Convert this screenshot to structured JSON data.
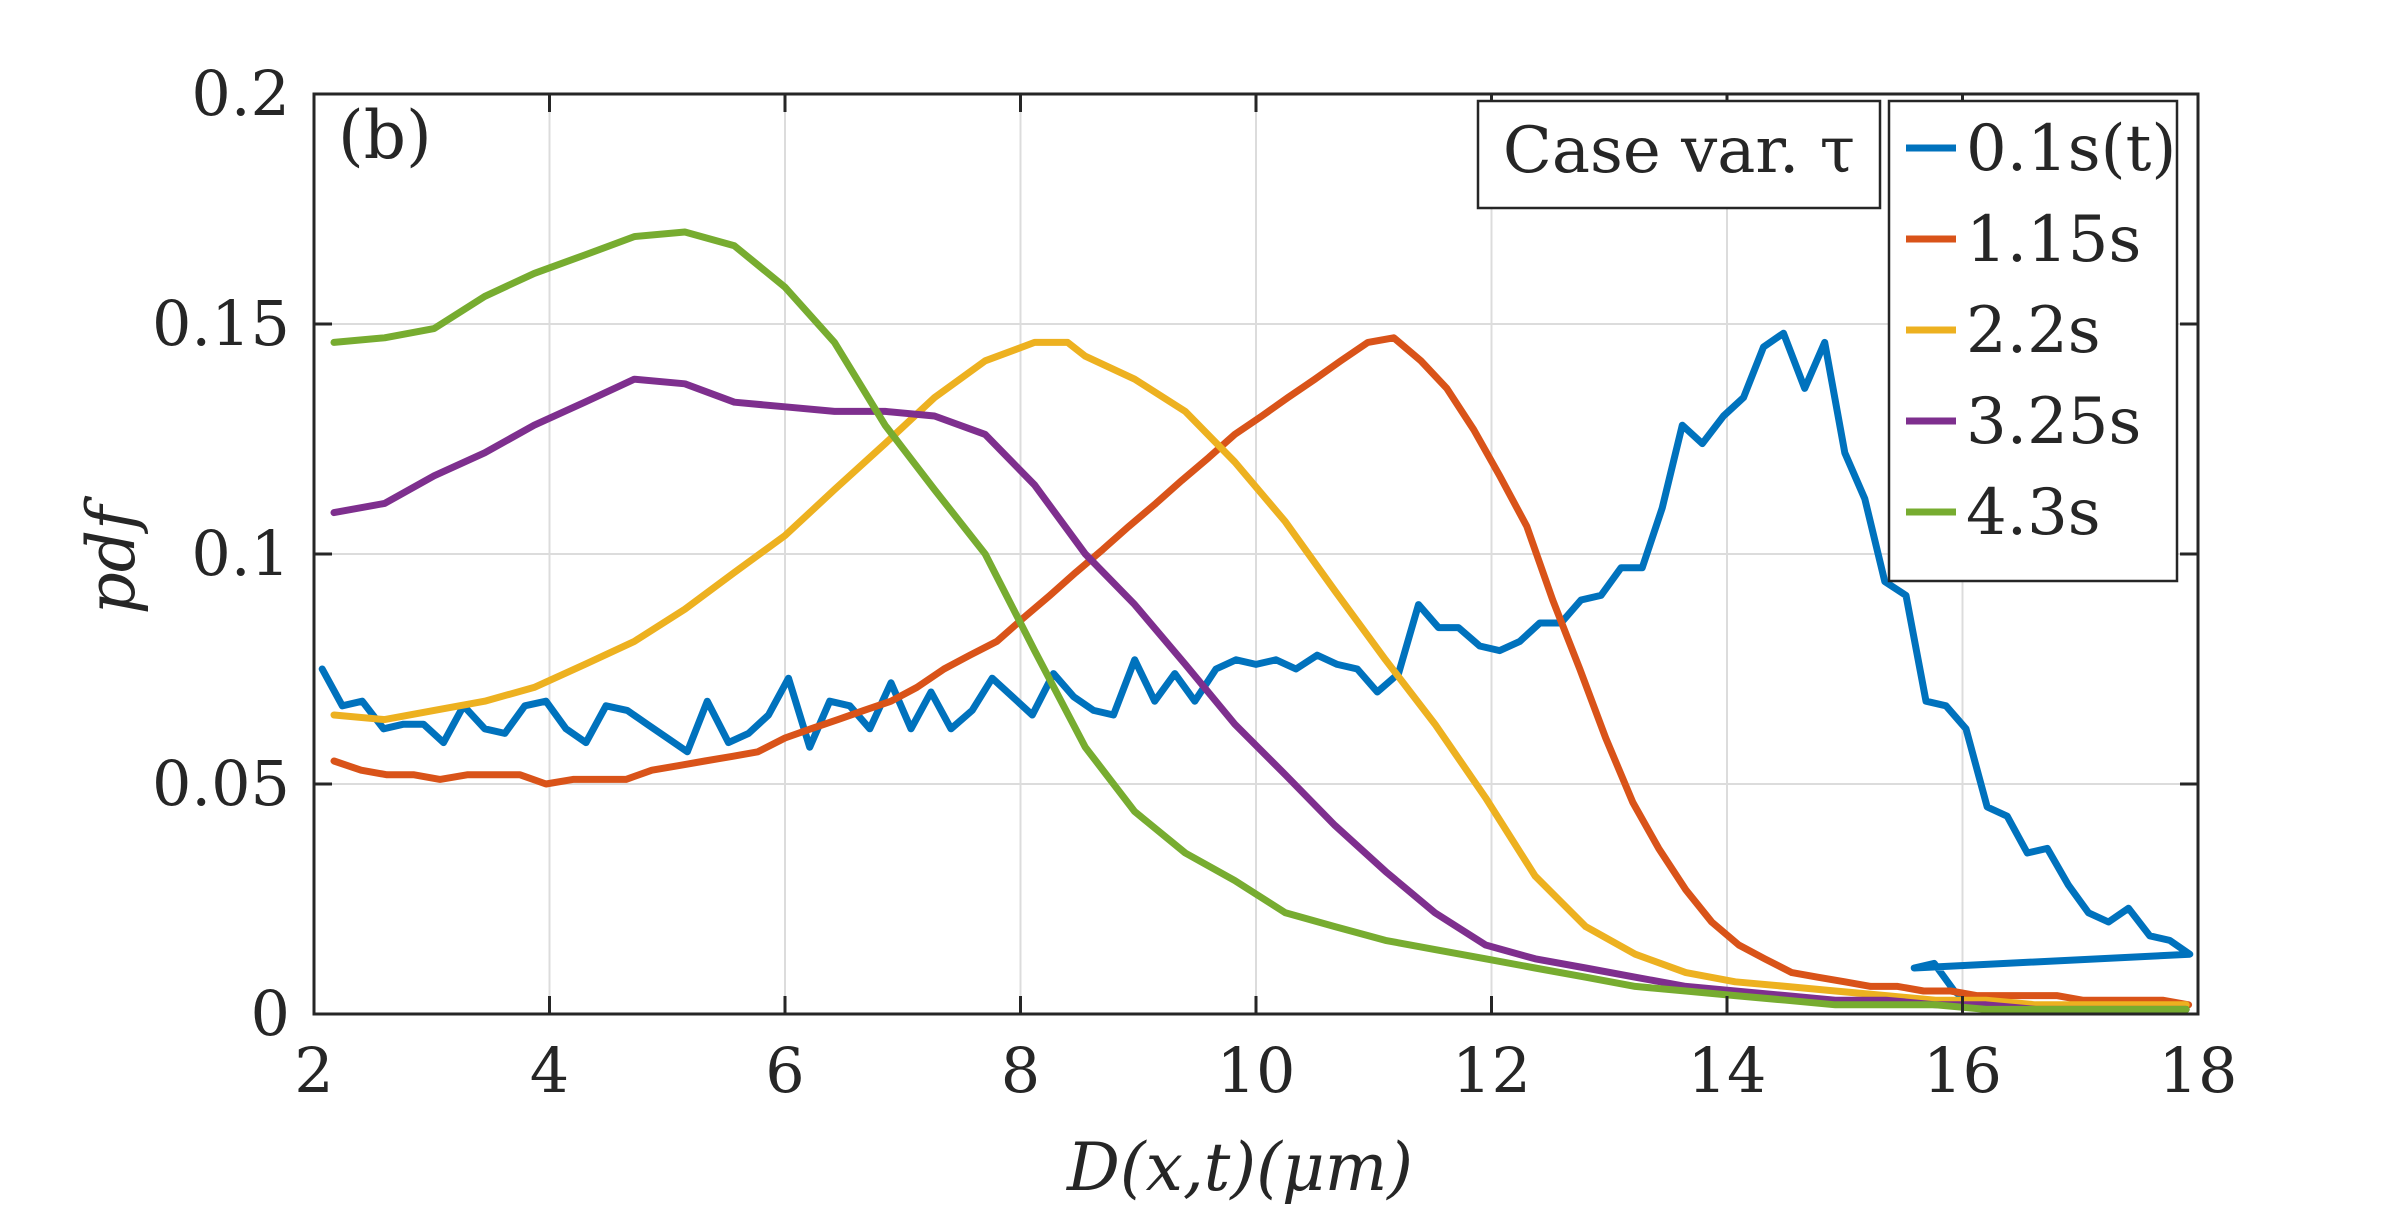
{
  "chart_data": {
    "type": "line",
    "panel_label": "(b)",
    "xlabel": "D(x,t)(μm)",
    "ylabel": "pdf",
    "xlim": [
      2,
      18
    ],
    "ylim": [
      0,
      0.2
    ],
    "xticks": [
      2,
      4,
      6,
      8,
      10,
      12,
      14,
      16,
      18
    ],
    "xtick_labels": [
      "2",
      "4",
      "6",
      "8",
      "10",
      "12",
      "14",
      "16",
      "18"
    ],
    "yticks": [
      0,
      0.05,
      0.1,
      0.15,
      0.2
    ],
    "ytick_labels": [
      "0",
      "0.05",
      "0.1",
      "0.15",
      "0.2"
    ],
    "grid": true,
    "legend_title": "Case var. τ",
    "legend_position": "top-right",
    "series": [
      {
        "name": "0.1s(t)",
        "color": "#0072BD",
        "x": [
          2.07,
          2.24,
          2.41,
          2.59,
          2.76,
          2.93,
          3.1,
          3.27,
          3.45,
          3.62,
          3.79,
          3.97,
          4.14,
          4.31,
          4.48,
          4.66,
          4.83,
          5.0,
          5.17,
          5.34,
          5.52,
          5.69,
          5.86,
          6.03,
          6.21,
          6.38,
          6.55,
          6.72,
          6.9,
          7.07,
          7.24,
          7.41,
          7.59,
          7.76,
          7.93,
          8.1,
          8.28,
          8.45,
          8.62,
          8.79,
          8.97,
          9.14,
          9.31,
          9.48,
          9.66,
          9.83,
          10.0,
          10.17,
          10.34,
          10.52,
          10.69,
          10.86,
          11.03,
          11.21,
          11.38,
          11.55,
          11.72,
          11.9,
          12.07,
          12.24,
          12.41,
          12.59,
          12.76,
          12.93,
          13.1,
          13.28,
          13.45,
          13.62,
          13.79,
          13.97,
          14.14,
          14.31,
          14.48,
          14.66,
          14.83,
          15.0,
          15.17,
          15.34,
          15.52,
          15.69,
          15.86,
          16.03,
          16.21,
          16.38,
          16.55,
          16.72,
          16.9,
          17.07,
          17.24,
          17.41,
          17.59,
          17.76,
          17.93
        ],
        "y": [
          0.075,
          0.067,
          0.068,
          0.062,
          0.063,
          0.063,
          0.059,
          0.067,
          0.062,
          0.061,
          0.067,
          0.068,
          0.062,
          0.059,
          0.067,
          0.066,
          0.063,
          0.06,
          0.057,
          0.068,
          0.059,
          0.061,
          0.065,
          0.073,
          0.058,
          0.068,
          0.067,
          0.062,
          0.072,
          0.062,
          0.07,
          0.062,
          0.066,
          0.073,
          0.069,
          0.065,
          0.074,
          0.069,
          0.066,
          0.065,
          0.077,
          0.068,
          0.074,
          0.068,
          0.075,
          0.077,
          0.076,
          0.077,
          0.075,
          0.078,
          0.076,
          0.075,
          0.07,
          0.074,
          0.089,
          0.084,
          0.084,
          0.08,
          0.079,
          0.081,
          0.085,
          0.085,
          0.09,
          0.091,
          0.097,
          0.097,
          0.11,
          0.128,
          0.124,
          0.13,
          0.134,
          0.145,
          0.148,
          0.136,
          0.146,
          0.122,
          0.112,
          0.094,
          0.091,
          0.068,
          0.067,
          0.062,
          0.045,
          0.043,
          0.035,
          0.036,
          0.028,
          0.022,
          0.02,
          0.023,
          0.017,
          0.016,
          0.013
        ],
        "tail_x": [
          15.59,
          15.76,
          15.93,
          16.03
        ],
        "tail_y": [
          0.01,
          0.011,
          0.005,
          0.003
        ]
      },
      {
        "name": "1.15s",
        "color": "#D95319",
        "x": [
          2.17,
          2.4,
          2.62,
          2.85,
          3.07,
          3.3,
          3.52,
          3.75,
          3.97,
          4.2,
          4.42,
          4.65,
          4.87,
          5.1,
          5.32,
          5.55,
          5.77,
          6.0,
          6.22,
          6.45,
          6.67,
          6.9,
          7.12,
          7.35,
          7.57,
          7.8,
          8.02,
          8.25,
          8.47,
          8.7,
          8.92,
          9.15,
          9.37,
          9.6,
          9.82,
          10.05,
          10.27,
          10.5,
          10.72,
          10.95,
          11.17,
          11.4,
          11.62,
          11.85,
          12.07,
          12.3,
          12.52,
          12.75,
          12.97,
          13.2,
          13.42,
          13.65,
          13.87,
          14.1,
          14.32,
          14.55,
          14.77,
          15.0,
          15.22,
          15.45,
          15.67,
          15.9,
          16.12,
          16.35,
          16.57,
          16.8,
          17.02,
          17.25,
          17.47,
          17.7,
          17.92
        ],
        "y": [
          0.055,
          0.053,
          0.052,
          0.052,
          0.051,
          0.052,
          0.052,
          0.052,
          0.05,
          0.051,
          0.051,
          0.051,
          0.053,
          0.054,
          0.055,
          0.056,
          0.057,
          0.06,
          0.062,
          0.064,
          0.066,
          0.068,
          0.071,
          0.075,
          0.078,
          0.081,
          0.086,
          0.091,
          0.096,
          0.101,
          0.106,
          0.111,
          0.116,
          0.121,
          0.126,
          0.13,
          0.134,
          0.138,
          0.142,
          0.146,
          0.147,
          0.142,
          0.136,
          0.127,
          0.117,
          0.106,
          0.09,
          0.075,
          0.06,
          0.046,
          0.036,
          0.027,
          0.02,
          0.015,
          0.012,
          0.009,
          0.008,
          0.007,
          0.006,
          0.006,
          0.005,
          0.005,
          0.004,
          0.004,
          0.004,
          0.004,
          0.003,
          0.003,
          0.003,
          0.003,
          0.002
        ]
      },
      {
        "name": "2.2s",
        "color": "#EDB120",
        "x": [
          2.17,
          2.6,
          3.02,
          3.45,
          3.87,
          4.3,
          4.72,
          5.15,
          5.57,
          6.0,
          6.42,
          6.85,
          7.27,
          7.7,
          8.12,
          8.4,
          8.55,
          8.97,
          9.4,
          9.82,
          10.25,
          10.67,
          11.1,
          11.52,
          11.95,
          12.37,
          12.8,
          13.22,
          13.65,
          14.07,
          14.5,
          14.92,
          15.35,
          15.77,
          16.2,
          16.62,
          17.05,
          17.47,
          17.9
        ],
        "y": [
          0.065,
          0.064,
          0.066,
          0.068,
          0.071,
          0.076,
          0.081,
          0.088,
          0.096,
          0.104,
          0.114,
          0.124,
          0.134,
          0.142,
          0.146,
          0.146,
          0.143,
          0.138,
          0.131,
          0.12,
          0.107,
          0.092,
          0.077,
          0.063,
          0.047,
          0.03,
          0.019,
          0.013,
          0.009,
          0.007,
          0.006,
          0.005,
          0.004,
          0.003,
          0.003,
          0.002,
          0.002,
          0.002,
          0.002
        ]
      },
      {
        "name": "3.25s",
        "color": "#7E2F8E",
        "x": [
          2.17,
          2.6,
          3.02,
          3.45,
          3.87,
          4.3,
          4.72,
          5.15,
          5.57,
          6.0,
          6.42,
          6.85,
          7.27,
          7.7,
          8.12,
          8.55,
          8.97,
          9.4,
          9.82,
          10.25,
          10.67,
          11.1,
          11.52,
          11.95,
          12.37,
          12.8,
          13.22,
          13.65,
          14.07,
          14.5,
          14.92,
          15.35,
          15.77,
          16.2,
          16.62,
          17.05,
          17.47,
          17.9
        ],
        "y": [
          0.109,
          0.111,
          0.117,
          0.122,
          0.128,
          0.133,
          0.138,
          0.137,
          0.133,
          0.132,
          0.131,
          0.131,
          0.13,
          0.126,
          0.115,
          0.1,
          0.089,
          0.076,
          0.063,
          0.052,
          0.041,
          0.031,
          0.022,
          0.015,
          0.012,
          0.01,
          0.008,
          0.006,
          0.005,
          0.004,
          0.003,
          0.003,
          0.002,
          0.002,
          0.001,
          0.001,
          0.001,
          0.001
        ]
      },
      {
        "name": "4.3s",
        "color": "#77AC30",
        "x": [
          2.17,
          2.6,
          3.02,
          3.45,
          3.87,
          4.3,
          4.72,
          5.15,
          5.57,
          6.0,
          6.42,
          6.85,
          7.27,
          7.7,
          8.12,
          8.55,
          8.97,
          9.4,
          9.82,
          10.25,
          10.67,
          11.1,
          11.52,
          11.95,
          12.37,
          12.8,
          13.22,
          13.65,
          14.07,
          14.5,
          14.92,
          15.35,
          15.77,
          16.2,
          16.62,
          17.05,
          17.47,
          17.9
        ],
        "y": [
          0.146,
          0.147,
          0.149,
          0.156,
          0.161,
          0.165,
          0.169,
          0.17,
          0.167,
          0.158,
          0.146,
          0.128,
          0.114,
          0.1,
          0.079,
          0.058,
          0.044,
          0.035,
          0.029,
          0.022,
          0.019,
          0.016,
          0.014,
          0.012,
          0.01,
          0.008,
          0.006,
          0.005,
          0.004,
          0.003,
          0.002,
          0.002,
          0.002,
          0.001,
          0.001,
          0.001,
          0.001,
          0.001
        ]
      }
    ]
  }
}
